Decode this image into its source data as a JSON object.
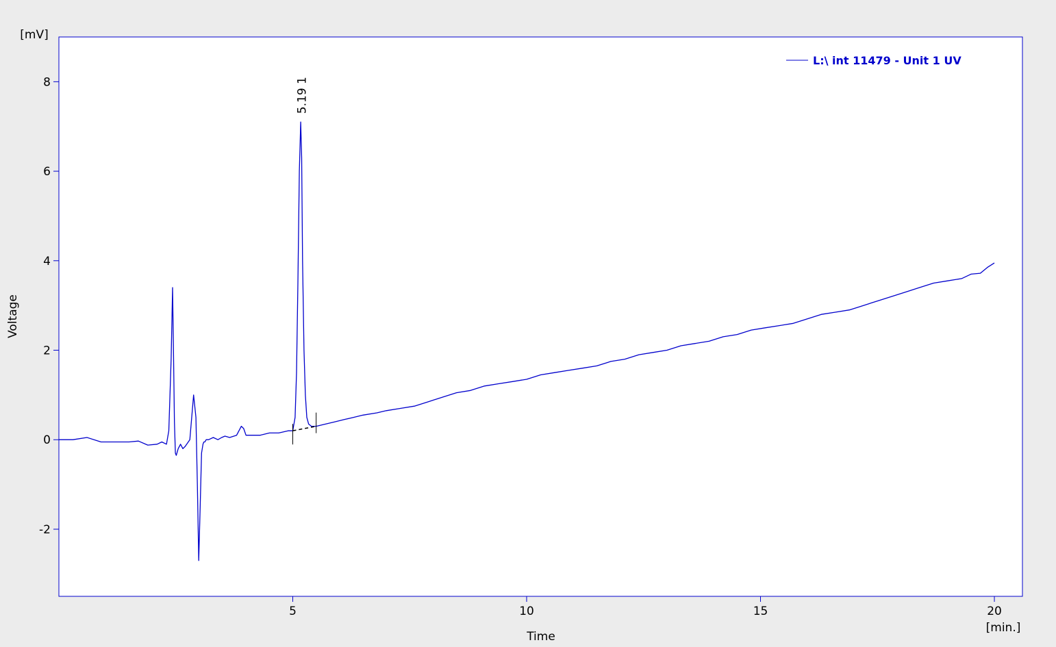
{
  "chart_data": {
    "type": "line",
    "ylabel": "Voltage",
    "xlabel": "Time",
    "y_unit": "[mV]",
    "x_unit": "[min.]",
    "xlim": [
      0,
      20.6
    ],
    "ylim": [
      -3.5,
      9.0
    ],
    "x_ticks": [
      5,
      10,
      15,
      20
    ],
    "y_ticks": [
      -2,
      0,
      2,
      4,
      6,
      8
    ],
    "x_tick_labels": [
      "5",
      "10",
      "15",
      "20"
    ],
    "y_tick_labels": [
      "-2",
      "0",
      "2",
      "4",
      "6",
      "8"
    ],
    "grid": false,
    "legend_position": "top-right",
    "colors": {
      "series": "#0000cc",
      "frame": "#0000cc",
      "baseline": "#000000",
      "background": "#ffffff",
      "page": "#ececec"
    },
    "series": [
      {
        "name": "L:\\ int 11479 - Unit 1 UV",
        "x": [
          0.0,
          0.3,
          0.6,
          0.9,
          1.2,
          1.5,
          1.7,
          1.9,
          2.1,
          2.2,
          2.3,
          2.35,
          2.4,
          2.43,
          2.45,
          2.47,
          2.49,
          2.51,
          2.55,
          2.6,
          2.65,
          2.7,
          2.8,
          2.88,
          2.93,
          2.96,
          2.99,
          3.02,
          3.05,
          3.08,
          3.1,
          3.12,
          3.15,
          3.2,
          3.3,
          3.4,
          3.48,
          3.55,
          3.65,
          3.8,
          3.9,
          3.95,
          4.0,
          4.1,
          4.3,
          4.5,
          4.7,
          4.9,
          5.0,
          5.05,
          5.08,
          5.11,
          5.14,
          5.17,
          5.19,
          5.21,
          5.24,
          5.27,
          5.3,
          5.34,
          5.4,
          5.5,
          5.7,
          5.9,
          6.1,
          6.3,
          6.5,
          6.8,
          7.0,
          7.3,
          7.6,
          7.9,
          8.2,
          8.5,
          8.8,
          9.1,
          9.4,
          9.7,
          10.0,
          10.3,
          10.6,
          10.9,
          11.2,
          11.5,
          11.8,
          12.1,
          12.4,
          12.7,
          13.0,
          13.3,
          13.6,
          13.9,
          14.2,
          14.5,
          14.8,
          15.1,
          15.4,
          15.7,
          16.0,
          16.3,
          16.6,
          16.9,
          17.2,
          17.5,
          17.8,
          18.1,
          18.4,
          18.7,
          19.0,
          19.3,
          19.5,
          19.7,
          19.85,
          20.0
        ],
        "y": [
          0.0,
          0.0,
          0.05,
          -0.05,
          -0.05,
          -0.05,
          -0.03,
          -0.12,
          -0.1,
          -0.05,
          -0.1,
          0.2,
          1.8,
          3.4,
          2.0,
          0.4,
          -0.3,
          -0.35,
          -0.2,
          -0.1,
          -0.2,
          -0.15,
          0.0,
          1.0,
          0.5,
          -1.0,
          -2.7,
          -1.5,
          -0.3,
          -0.1,
          -0.05,
          -0.05,
          0.0,
          0.0,
          0.05,
          0.0,
          0.05,
          0.08,
          0.05,
          0.1,
          0.3,
          0.25,
          0.1,
          0.1,
          0.1,
          0.15,
          0.15,
          0.2,
          0.2,
          0.5,
          1.5,
          3.5,
          6.0,
          7.1,
          6.3,
          4.0,
          2.0,
          1.0,
          0.5,
          0.35,
          0.3,
          0.3,
          0.35,
          0.4,
          0.45,
          0.5,
          0.55,
          0.6,
          0.65,
          0.7,
          0.75,
          0.85,
          0.95,
          1.05,
          1.1,
          1.2,
          1.25,
          1.3,
          1.35,
          1.45,
          1.5,
          1.55,
          1.6,
          1.65,
          1.75,
          1.8,
          1.9,
          1.95,
          2.0,
          2.1,
          2.15,
          2.2,
          2.3,
          2.35,
          2.45,
          2.5,
          2.55,
          2.6,
          2.7,
          2.8,
          2.85,
          2.9,
          3.0,
          3.1,
          3.2,
          3.3,
          3.4,
          3.5,
          3.55,
          3.6,
          3.7,
          3.72,
          3.85,
          3.95
        ]
      }
    ],
    "peak_annotation": {
      "x": 5.19,
      "y": 7.1,
      "label": "5.19   1"
    },
    "integration_baseline": {
      "x": [
        5.0,
        5.5
      ],
      "y": [
        0.2,
        0.3
      ]
    }
  }
}
